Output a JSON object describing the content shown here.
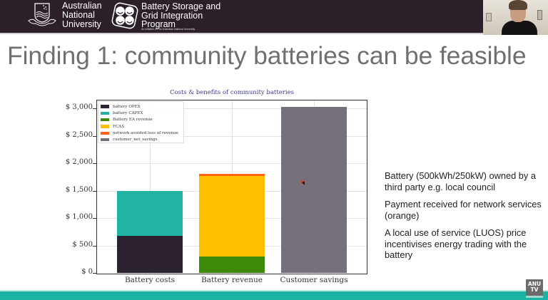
{
  "header": {
    "anu": {
      "line1": "Australian",
      "line2": "National",
      "line3": "University"
    },
    "bsgip": {
      "line1": "Battery Storage and",
      "line2": "Grid Integration",
      "line3": "Program",
      "subtitle": "An initiative of The Australian National University"
    },
    "colors": {
      "background": "#2b1f2a",
      "text": "#ffffff"
    }
  },
  "slide": {
    "title": "Finding 1: community batteries can be feasible",
    "bullets": [
      "Battery (500kWh/250kW) owned by a third party e.g. local council",
      "Payment received for network services (orange)",
      "A local use of service (LUOS) price incentivises energy trading with the battery"
    ]
  },
  "branding": {
    "anutv_line1": "ANU",
    "anutv_line2": "TV",
    "footer_color": "#1cb3a3"
  },
  "chart_data": {
    "type": "bar",
    "stacked": true,
    "title": "Costs & benefits of community batteries",
    "xlabel": "",
    "ylabel": "",
    "categories": [
      "Battery costs",
      "Battery revenue",
      "Customer savings"
    ],
    "series": [
      {
        "name": "battery OPEX",
        "color": "#2d2230",
        "values": [
          680,
          0,
          0
        ]
      },
      {
        "name": "battery CAPEX",
        "color": "#21b3a3",
        "values": [
          820,
          0,
          0
        ]
      },
      {
        "name": "Battery EA revenue",
        "color": "#3d8a0a",
        "values": [
          0,
          300,
          0
        ]
      },
      {
        "name": "FCAS",
        "color": "#ffbf00",
        "values": [
          0,
          1460,
          0
        ]
      },
      {
        "name": "network avoided loss of revenue",
        "color": "#ff6410",
        "values": [
          0,
          40,
          0
        ]
      },
      {
        "name": "customer_net_savings",
        "color": "#76707a",
        "values": [
          0,
          0,
          3030
        ]
      }
    ],
    "ylim": [
      0,
      3200
    ],
    "yticks": [
      0,
      500,
      1000,
      1500,
      2000,
      2500,
      3000
    ],
    "ytick_labels": [
      "$ 0",
      "$ 500",
      "$ 1,000",
      "$ 1,500",
      "$ 2,000",
      "$ 2,500",
      "$ 3,000"
    ],
    "grid": true,
    "legend_position": "upper left"
  }
}
